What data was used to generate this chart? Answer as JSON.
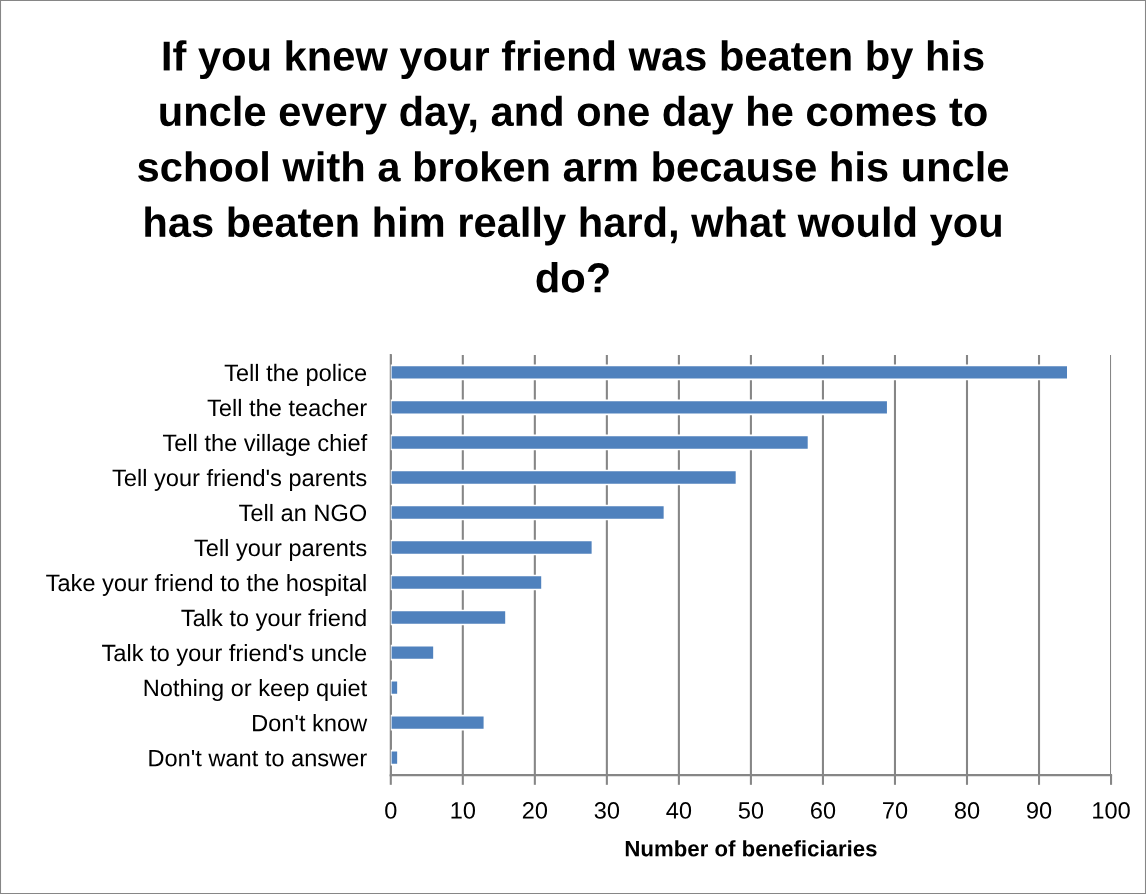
{
  "chart_data": {
    "type": "bar",
    "orientation": "horizontal",
    "title": "If you knew your friend was beaten by his uncle every day, and one day he comes to school with a broken arm because his uncle has beaten him really hard, what would you do?",
    "xlabel": "Number of beneficiaries",
    "categories": [
      "Tell the police",
      "Tell the teacher",
      "Tell the village chief",
      "Tell your friend's parents",
      "Tell an NGO",
      "Tell your parents",
      "Take your friend to the hospital",
      "Talk to your friend",
      "Talk to your friend's uncle",
      "Nothing or keep quiet",
      "Don't know",
      "Don't want to answer"
    ],
    "values": [
      94,
      69,
      58,
      48,
      38,
      28,
      21,
      16,
      6,
      1,
      13,
      1
    ],
    "color": "#4f81bd",
    "xlim": [
      0,
      100
    ],
    "xticks": [
      0,
      10,
      20,
      30,
      40,
      50,
      60,
      70,
      80,
      90,
      100
    ],
    "grid": "x"
  }
}
